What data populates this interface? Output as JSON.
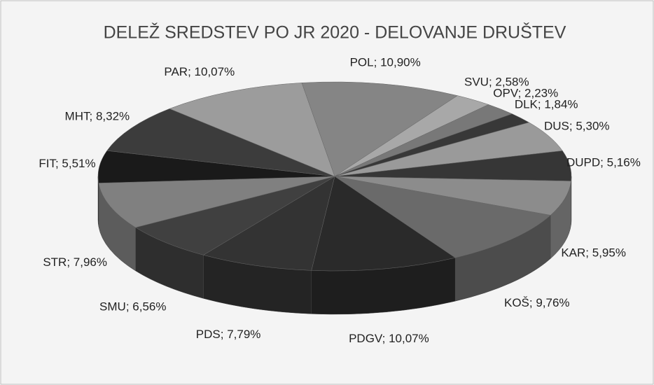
{
  "chart_data": {
    "type": "pie3d",
    "title": "DELEŽ SREDSTEV PO JR 2020 - DELOVANJE DRUŠTEV",
    "categories": [
      "POL",
      "SVU",
      "OPV",
      "DLK",
      "DUS",
      "DUPD",
      "KAR",
      "KOŠ",
      "PDGV",
      "PDS",
      "SMU",
      "STR",
      "FIT",
      "MHT",
      "PAR"
    ],
    "values": [
      10.9,
      2.58,
      2.23,
      1.84,
      5.3,
      5.16,
      5.95,
      9.76,
      10.07,
      7.79,
      6.56,
      7.96,
      5.51,
      8.32,
      10.07
    ],
    "value_labels": [
      "10,90%",
      "2,58%",
      "2,23%",
      "1,84%",
      "5,30%",
      "5,16%",
      "5,95%",
      "9,76%",
      "10,07%",
      "7,79%",
      "6,56%",
      "7,96%",
      "5,51%",
      "8,32%",
      "10,07%"
    ],
    "label_separator": "; ",
    "colors": [
      "#858585",
      "#a8a8a8",
      "#787878",
      "#383838",
      "#9a9a9a",
      "#363636",
      "#8c8c8c",
      "#6a6a6a",
      "#2a2a2a",
      "#333333",
      "#404040",
      "#808080",
      "#1a1a1a",
      "#3c3c3c",
      "#9c9c9c"
    ]
  }
}
